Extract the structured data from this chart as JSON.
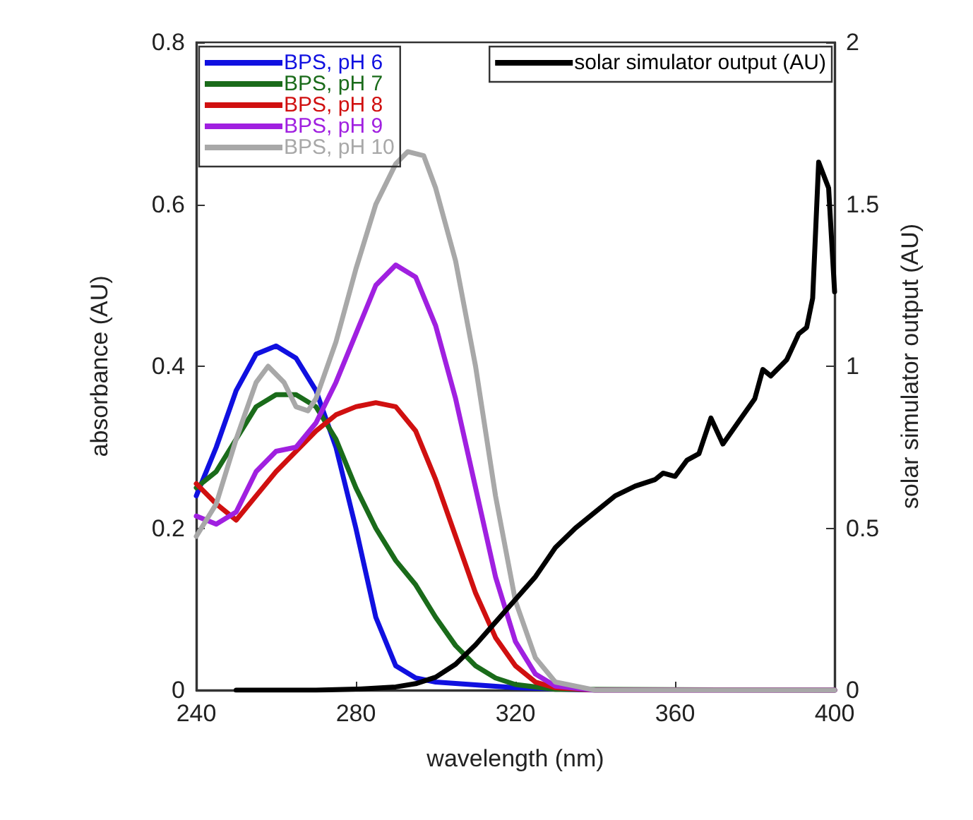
{
  "chart_data": {
    "type": "line",
    "xlabel": "wavelength (nm)",
    "ylabel": "absorbance (AU)",
    "y2label": "solar simulator output (AU)",
    "xlim": [
      240,
      400
    ],
    "xticks": [
      240,
      280,
      320,
      360,
      400
    ],
    "ylim": [
      0,
      0.8
    ],
    "yticks": [
      0,
      0.2,
      0.4,
      0.6,
      0.8
    ],
    "y2lim": [
      0,
      2
    ],
    "y2ticks": [
      0,
      0.5,
      1,
      1.5,
      2
    ],
    "grid": false,
    "legend": "top left",
    "marker": "none",
    "line_style": "solid",
    "series": [
      {
        "name": "BPS, pH 6",
        "color": "#1010e0",
        "x": [
          240,
          245,
          250,
          255,
          260,
          265,
          270,
          275,
          280,
          285,
          290,
          295,
          300,
          320,
          340,
          400
        ],
        "values": [
          0.24,
          0.3,
          0.37,
          0.415,
          0.425,
          0.41,
          0.37,
          0.3,
          0.2,
          0.09,
          0.03,
          0.015,
          0.01,
          0.003,
          0,
          0
        ]
      },
      {
        "name": "BPS, pH 7",
        "color": "#1a6b1a",
        "x": [
          240,
          245,
          250,
          255,
          260,
          265,
          270,
          275,
          280,
          285,
          290,
          295,
          300,
          305,
          310,
          315,
          320,
          330,
          400
        ],
        "values": [
          0.25,
          0.27,
          0.31,
          0.35,
          0.365,
          0.365,
          0.35,
          0.31,
          0.25,
          0.2,
          0.16,
          0.13,
          0.09,
          0.055,
          0.03,
          0.015,
          0.007,
          0.001,
          0
        ]
      },
      {
        "name": "BPS, pH 8",
        "color": "#d01010",
        "x": [
          240,
          245,
          250,
          255,
          260,
          265,
          270,
          275,
          280,
          285,
          290,
          295,
          300,
          305,
          310,
          315,
          320,
          325,
          330,
          340,
          400
        ],
        "values": [
          0.255,
          0.23,
          0.21,
          0.24,
          0.27,
          0.295,
          0.32,
          0.34,
          0.35,
          0.355,
          0.35,
          0.32,
          0.26,
          0.19,
          0.12,
          0.065,
          0.03,
          0.01,
          0.003,
          0,
          0
        ]
      },
      {
        "name": "BPS, pH 9",
        "color": "#a020e0",
        "x": [
          240,
          245,
          250,
          255,
          260,
          265,
          270,
          275,
          280,
          285,
          290,
          295,
          300,
          305,
          310,
          315,
          320,
          325,
          330,
          340,
          400
        ],
        "values": [
          0.215,
          0.205,
          0.22,
          0.27,
          0.295,
          0.3,
          0.33,
          0.38,
          0.44,
          0.5,
          0.525,
          0.51,
          0.45,
          0.36,
          0.25,
          0.14,
          0.06,
          0.02,
          0.005,
          0,
          0
        ]
      },
      {
        "name": "BPS, pH 10",
        "color": "#a8a8a8",
        "x": [
          240,
          245,
          250,
          255,
          258,
          262,
          265,
          268,
          270,
          275,
          280,
          285,
          290,
          293,
          297,
          300,
          305,
          310,
          315,
          320,
          325,
          330,
          340,
          400
        ],
        "values": [
          0.19,
          0.23,
          0.31,
          0.38,
          0.4,
          0.38,
          0.35,
          0.345,
          0.36,
          0.43,
          0.52,
          0.6,
          0.65,
          0.665,
          0.66,
          0.62,
          0.53,
          0.4,
          0.24,
          0.11,
          0.04,
          0.01,
          0,
          0
        ]
      },
      {
        "name": "solar simulator output (AU)",
        "color": "#000000",
        "axis": "y2",
        "x": [
          250,
          270,
          280,
          290,
          295,
          300,
          305,
          310,
          315,
          320,
          325,
          330,
          335,
          340,
          345,
          350,
          355,
          357,
          360,
          363,
          366,
          369,
          372,
          376,
          380,
          382,
          384,
          388,
          391,
          393,
          394.5,
          396,
          398.5,
          400
        ],
        "values": [
          0,
          0,
          0.003,
          0.01,
          0.02,
          0.04,
          0.08,
          0.14,
          0.21,
          0.28,
          0.35,
          0.44,
          0.5,
          0.55,
          0.6,
          0.63,
          0.65,
          0.67,
          0.66,
          0.71,
          0.73,
          0.84,
          0.76,
          0.83,
          0.9,
          0.99,
          0.97,
          1.02,
          1.1,
          1.12,
          1.21,
          1.63,
          1.55,
          1.23
        ]
      }
    ]
  }
}
